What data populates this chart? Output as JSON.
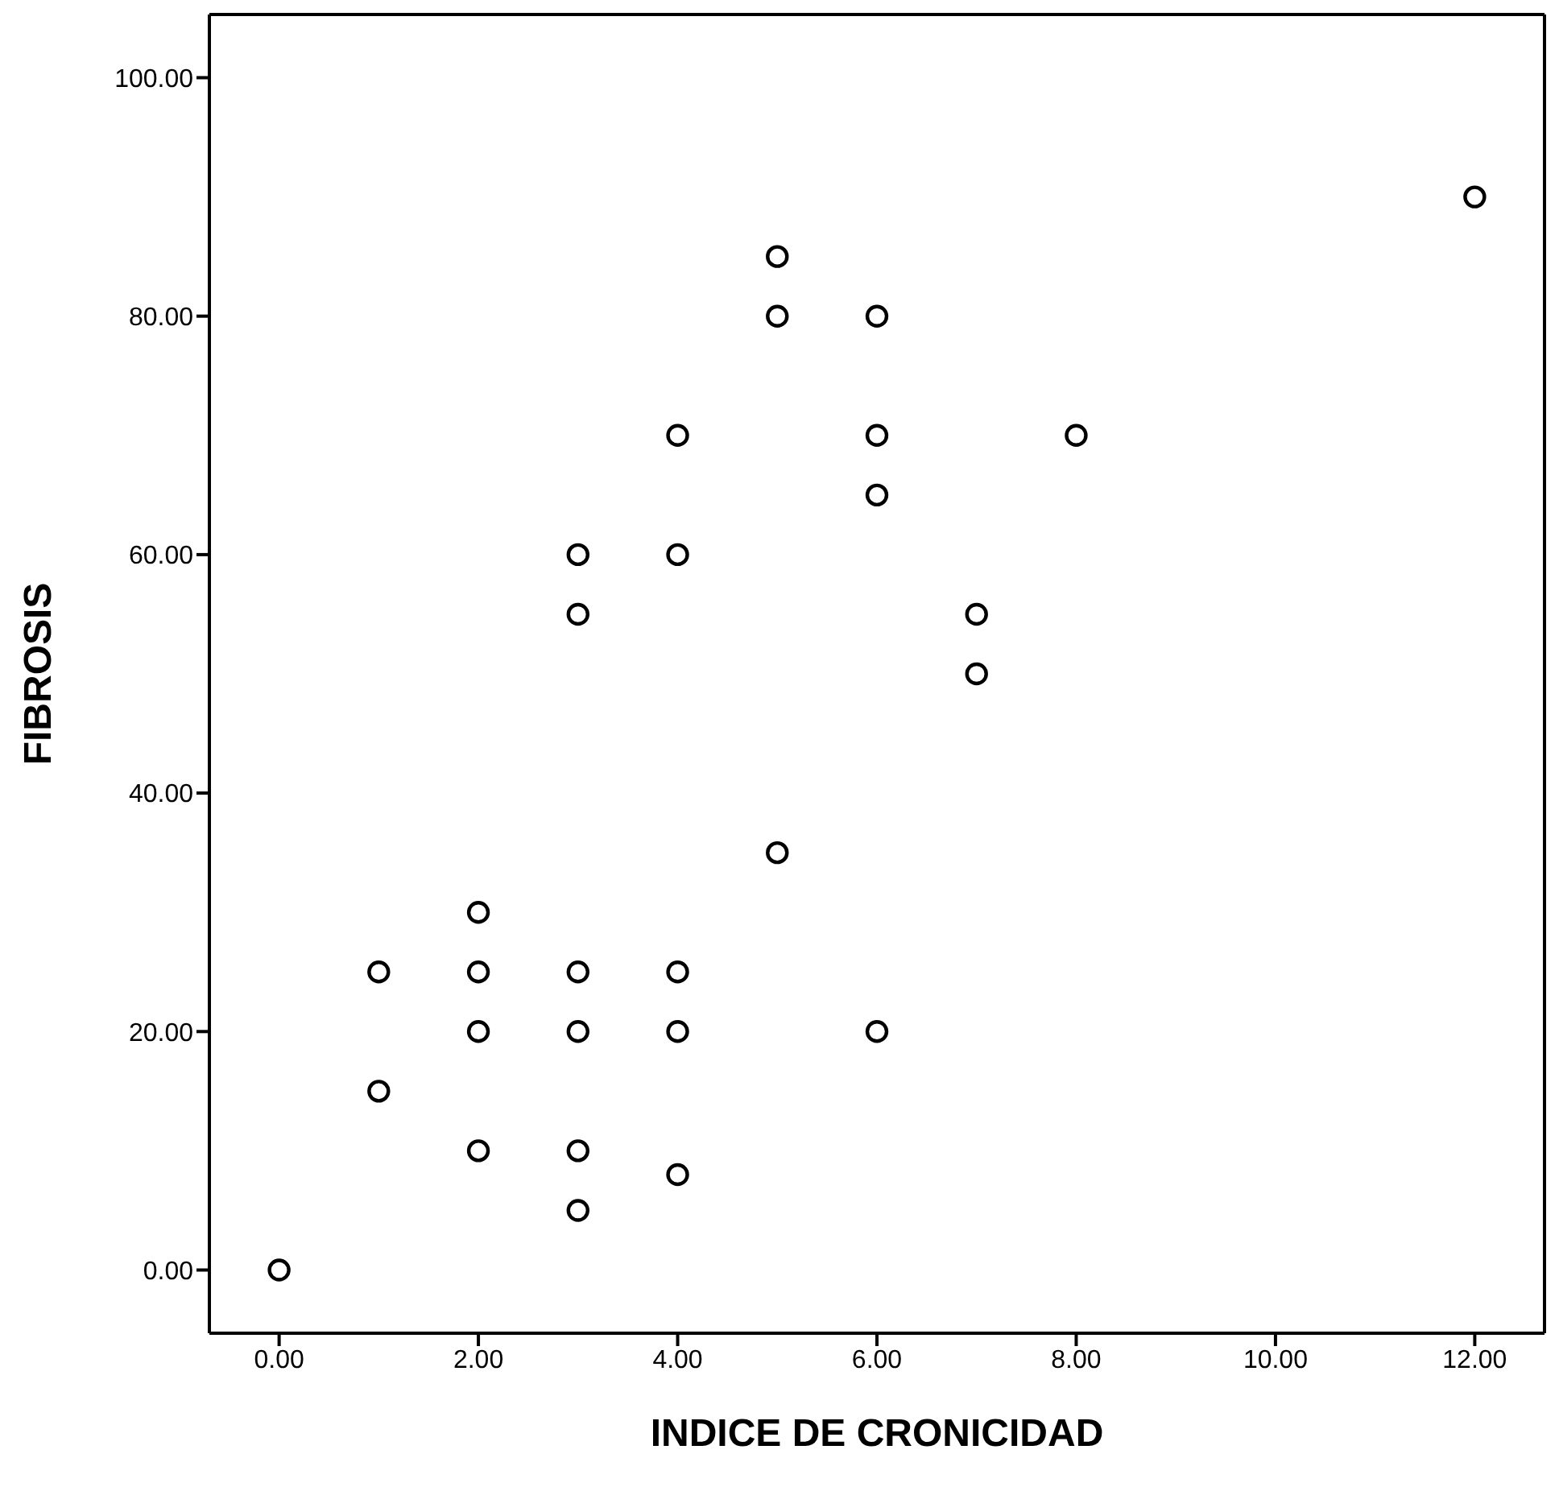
{
  "chart_data": {
    "type": "scatter",
    "xlabel": "INDICE DE CRONICIDAD",
    "ylabel": "FIBROSIS",
    "x": [
      0,
      1,
      1,
      2,
      2,
      2,
      2,
      3,
      3,
      3,
      3,
      3,
      3,
      4,
      4,
      4,
      4,
      4,
      5,
      5,
      5,
      6,
      6,
      6,
      6,
      7,
      7,
      8,
      12
    ],
    "values": [
      0,
      25,
      15,
      30,
      25,
      20,
      10,
      60,
      55,
      25,
      20,
      10,
      5,
      70,
      60,
      25,
      20,
      8,
      85,
      80,
      35,
      80,
      70,
      65,
      20,
      55,
      50,
      70,
      90
    ],
    "color": "#000000",
    "marker": "circle",
    "grid": false,
    "legend": false,
    "xlim": [
      -0.7,
      12.7
    ],
    "ylim": [
      -5.3,
      105.3
    ],
    "xticks": [
      {
        "value": 0,
        "label": "0.00"
      },
      {
        "value": 2,
        "label": "2.00"
      },
      {
        "value": 4,
        "label": "4.00"
      },
      {
        "value": 6,
        "label": "6.00"
      },
      {
        "value": 8,
        "label": "8.00"
      },
      {
        "value": 10,
        "label": "10.00"
      },
      {
        "value": 12,
        "label": "12.00"
      }
    ],
    "yticks": [
      {
        "value": 0,
        "label": "0.00"
      },
      {
        "value": 20,
        "label": "20.00"
      },
      {
        "value": 40,
        "label": "40.00"
      },
      {
        "value": 60,
        "label": "60.00"
      },
      {
        "value": 80,
        "label": "80.00"
      },
      {
        "value": 100,
        "label": "100.00"
      }
    ]
  }
}
